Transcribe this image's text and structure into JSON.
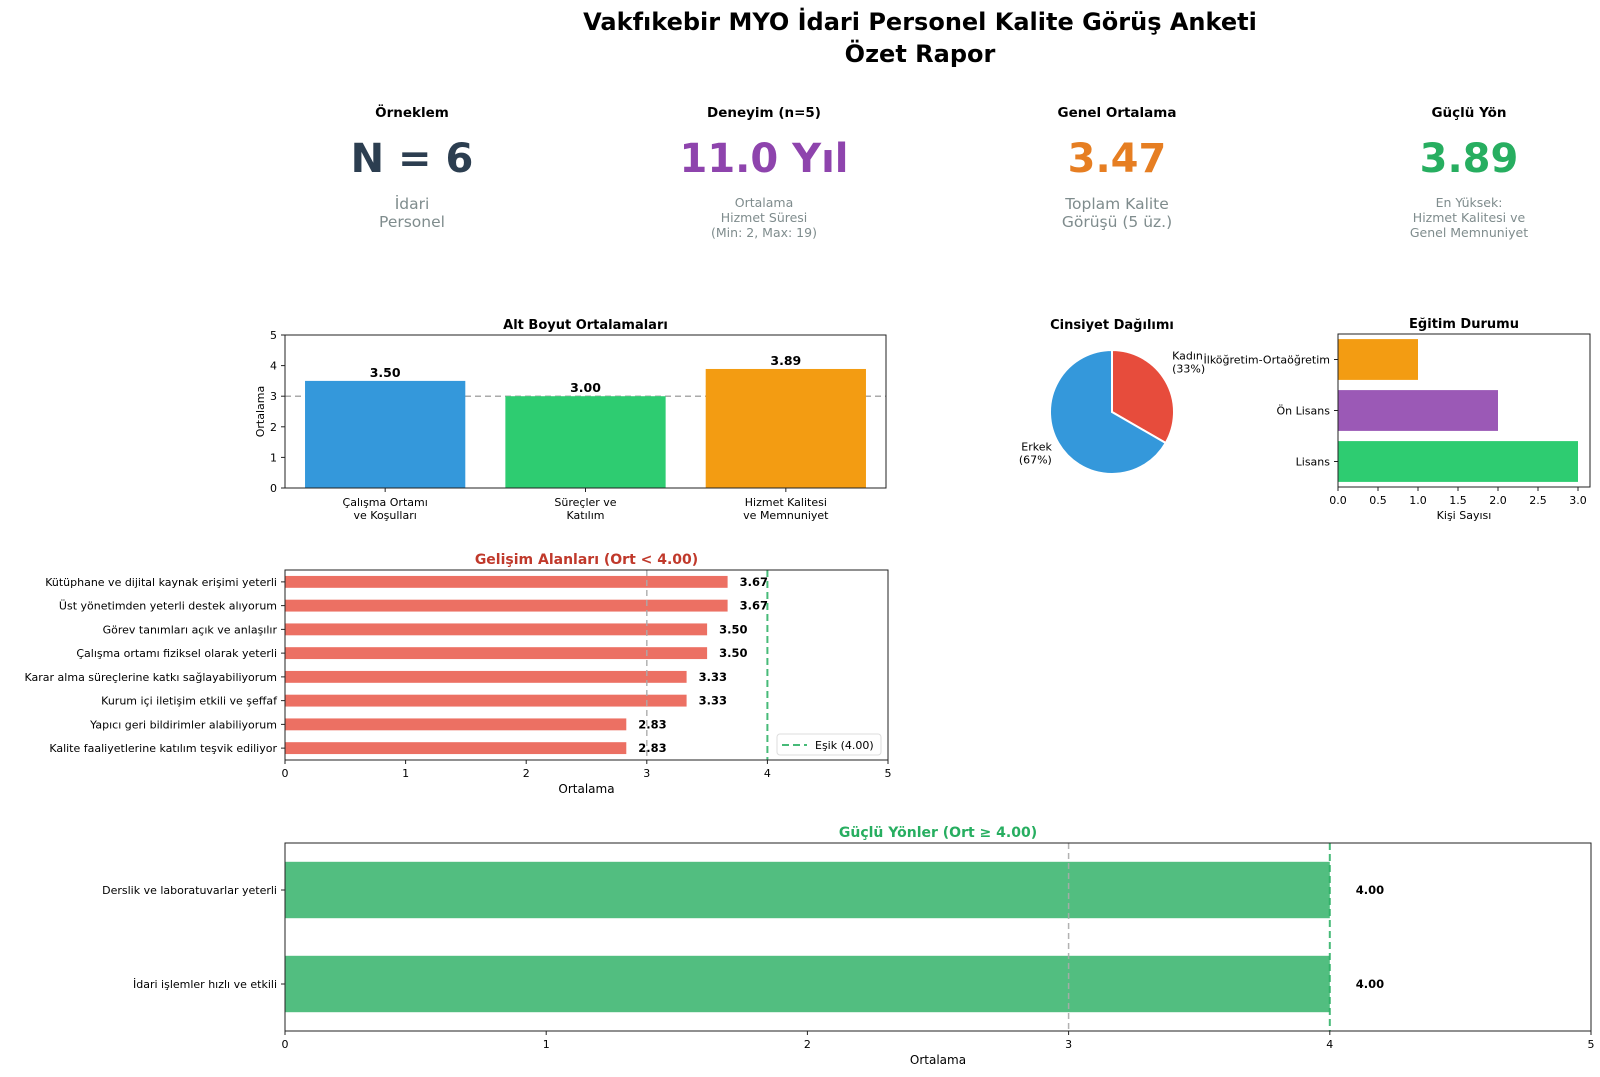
{
  "header": {
    "title_line1": "Vakfıkebir MYO İdari Personel Kalite Görüş Anketi",
    "title_line2": "Özet Rapor"
  },
  "kpis": [
    {
      "label": "Örneklem",
      "value": "N = 6",
      "sub": [
        "İdari",
        "Personel"
      ],
      "color": "#2c3e50",
      "sub_size": "large"
    },
    {
      "label": "Deneyim (n=5)",
      "value": "11.0 Yıl",
      "sub": [
        "Ortalama",
        "Hizmet Süresi",
        "(Min: 2, Max: 19)"
      ],
      "color": "#8e44ad",
      "sub_size": "small"
    },
    {
      "label": "Genel Ortalama",
      "value": "3.47",
      "sub": [
        "Toplam Kalite",
        "Görüşü (5 üz.)"
      ],
      "color": "#e67e22",
      "sub_size": "large"
    },
    {
      "label": "Güçlü Yön",
      "value": "3.89",
      "sub": [
        "En Yüksek:",
        "Hizmet Kalitesi ve",
        "Genel Memnuniyet"
      ],
      "color": "#27ae60",
      "sub_size": "small"
    }
  ],
  "chart_data": [
    {
      "id": "alt-boyut",
      "type": "bar",
      "title": "Alt Boyut Ortalamaları",
      "xlabel": "",
      "ylabel": "Ortalama",
      "categories": [
        [
          "Çalışma Ortamı",
          "ve Koşulları"
        ],
        [
          "Süreçler ve",
          "Katılım"
        ],
        [
          "Hizmet Kalitesi",
          "ve Memnuniyet"
        ]
      ],
      "values": [
        3.5,
        3.0,
        3.89
      ],
      "value_labels": [
        "3.50",
        "3.00",
        "3.89"
      ],
      "colors": [
        "#3498db",
        "#2ecc71",
        "#f39c12"
      ],
      "ylim": [
        0,
        5
      ],
      "yticks": [
        0,
        1,
        2,
        3,
        4,
        5
      ],
      "reference_line": {
        "value": 3,
        "color": "#aaaaaa",
        "style": "dashed"
      },
      "grid": false
    },
    {
      "id": "cinsiyet",
      "type": "pie",
      "title": "Cinsiyet Dağılımı",
      "slices": [
        {
          "label": "Kadın",
          "pct_label": "(33%)",
          "value": 2,
          "percent": 33.3,
          "color": "#e74c3c"
        },
        {
          "label": "Erkek",
          "pct_label": "(67%)",
          "value": 4,
          "percent": 66.7,
          "color": "#3498db"
        }
      ],
      "start_angle": 90,
      "direction": "clockwise"
    },
    {
      "id": "egitim",
      "type": "bar",
      "orientation": "horizontal",
      "title": "Eğitim Durumu",
      "xlabel": "Kişi Sayısı",
      "categories": [
        "İlköğretim-Ortaöğretim",
        "Ön Lisans",
        "Lisans"
      ],
      "values": [
        1,
        2,
        3
      ],
      "colors": [
        "#f39c12",
        "#9b59b6",
        "#2ecc71"
      ],
      "xlim": [
        0,
        3.15
      ],
      "xticks": [
        "0.0",
        "0.5",
        "1.0",
        "1.5",
        "2.0",
        "2.5",
        "3.0"
      ],
      "grid": false
    },
    {
      "id": "gelisim",
      "type": "bar",
      "orientation": "horizontal",
      "title": "Gelişim Alanları (Ort < 4.00)",
      "title_color": "#c0392b",
      "xlabel": "Ortalama",
      "categories": [
        "Kütüphane ve dijital kaynak erişimi yeterli",
        "Üst yönetimden yeterli destek alıyorum",
        "Görev tanımları açık ve anlaşılır",
        "Çalışma ortamı fiziksel olarak yeterli",
        "Karar alma süreçlerine katkı sağlayabiliyorum",
        "Kurum içi iletişim etkili ve şeffaf",
        "Yapıcı geri bildirimler alabiliyorum",
        "Kalite faaliyetlerine katılım teşvik ediliyor"
      ],
      "values": [
        3.67,
        3.67,
        3.5,
        3.5,
        3.33,
        3.33,
        2.83,
        2.83
      ],
      "value_labels": [
        "3.67",
        "3.67",
        "3.50",
        "3.50",
        "3.33",
        "3.33",
        "2.83",
        "2.83"
      ],
      "color": "#e74c3c",
      "xlim": [
        0,
        5
      ],
      "xticks": [
        0,
        1,
        2,
        3,
        4,
        5
      ],
      "reference_lines": [
        {
          "value": 3,
          "color": "#aaaaaa",
          "style": "dashed"
        },
        {
          "value": 4,
          "color": "#27ae60",
          "style": "dashed",
          "legend": "Eşik (4.00)"
        }
      ],
      "legend_position": "lower-right"
    },
    {
      "id": "guclu",
      "type": "bar",
      "orientation": "horizontal",
      "title": "Güçlü Yönler (Ort ≥ 4.00)",
      "title_color": "#27ae60",
      "xlabel": "Ortalama",
      "categories": [
        "Derslik ve laboratuvarlar yeterli",
        "İdari işlemler hızlı ve etkili"
      ],
      "values": [
        4.0,
        4.0
      ],
      "value_labels": [
        "4.00",
        "4.00"
      ],
      "color": "#27ae60",
      "xlim": [
        0,
        5
      ],
      "xticks": [
        0,
        1,
        2,
        3,
        4,
        5
      ],
      "reference_lines": [
        {
          "value": 3,
          "color": "#aaaaaa",
          "style": "dashed"
        },
        {
          "value": 4,
          "color": "#27ae60",
          "style": "dashed"
        }
      ]
    }
  ]
}
